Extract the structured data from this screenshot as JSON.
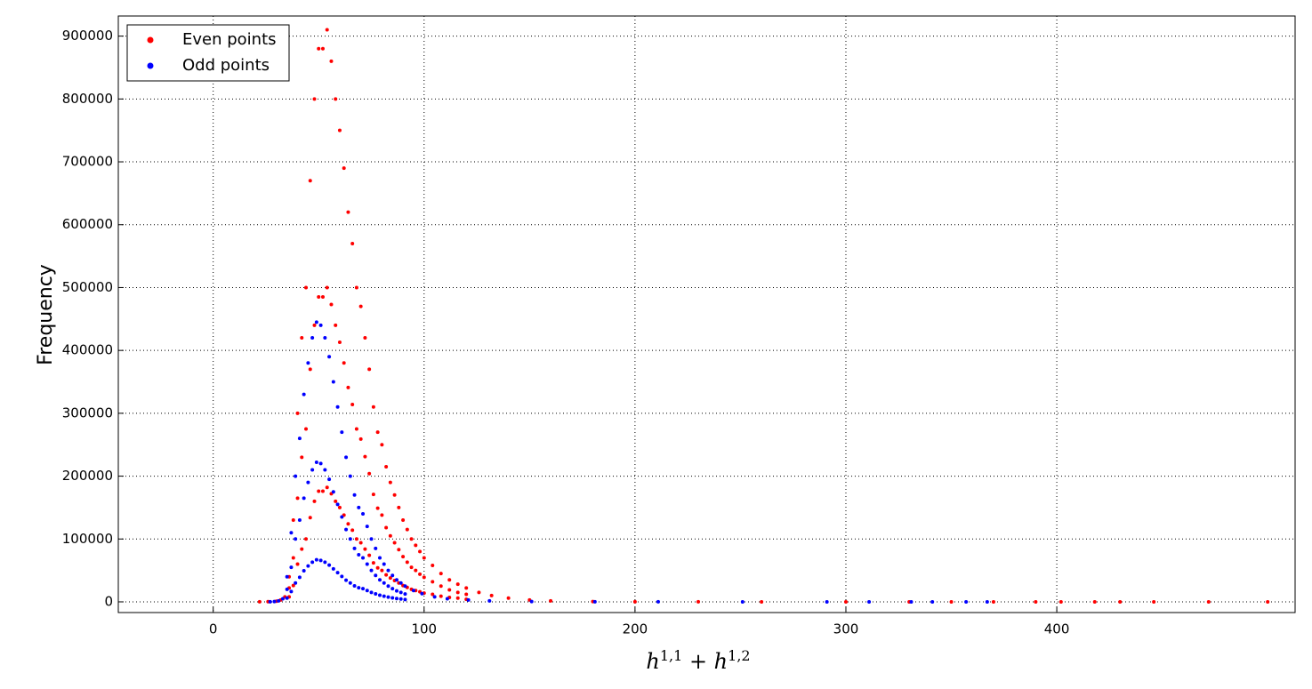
{
  "chart_data": {
    "type": "scatter",
    "ylabel": "Frequency",
    "xlabel": [
      {
        "text": "h",
        "sup": "1,1"
      },
      {
        "text": " + h",
        "sup": "1,2"
      }
    ],
    "xlim": [
      -45,
      513
    ],
    "ylim": [
      -17000,
      932000
    ],
    "xticks": [
      0,
      100,
      200,
      300,
      400
    ],
    "yticks": [
      0,
      100000,
      200000,
      300000,
      400000,
      500000,
      600000,
      700000,
      800000,
      900000
    ],
    "grid": true,
    "legend": "upper left",
    "series": [
      {
        "name": "Even points",
        "color": "#ff0000",
        "x": [
          22,
          26,
          30,
          32,
          34,
          36,
          36,
          36,
          38,
          38,
          38,
          40,
          40,
          40,
          42,
          42,
          42,
          44,
          44,
          44,
          46,
          46,
          46,
          48,
          48,
          48,
          50,
          50,
          50,
          52,
          52,
          52,
          54,
          54,
          54,
          56,
          56,
          56,
          58,
          58,
          58,
          60,
          60,
          60,
          62,
          62,
          62,
          64,
          64,
          64,
          66,
          66,
          66,
          68,
          68,
          68,
          70,
          70,
          70,
          72,
          72,
          72,
          74,
          74,
          74,
          76,
          76,
          76,
          78,
          78,
          78,
          80,
          80,
          80,
          82,
          82,
          82,
          84,
          84,
          84,
          86,
          86,
          86,
          88,
          88,
          88,
          90,
          90,
          90,
          92,
          92,
          92,
          94,
          94,
          94,
          96,
          96,
          96,
          98,
          98,
          98,
          100,
          100,
          100,
          104,
          104,
          104,
          108,
          108,
          108,
          112,
          112,
          112,
          116,
          116,
          116,
          120,
          120,
          120,
          126,
          132,
          140,
          150,
          160,
          180,
          200,
          230,
          260,
          300,
          330,
          350,
          370,
          390,
          402,
          418,
          430,
          446,
          472,
          500
        ],
        "y": [
          100,
          300,
          1000,
          3000,
          8000,
          40000,
          22000,
          8000,
          130000,
          70000,
          26000,
          300000,
          165000,
          60000,
          420000,
          230000,
          84000,
          500000,
          275000,
          100000,
          670000,
          370000,
          134000,
          800000,
          440000,
          160000,
          880000,
          485000,
          176000,
          880000,
          485000,
          176000,
          910000,
          500000,
          182000,
          860000,
          473000,
          172000,
          800000,
          440000,
          160000,
          750000,
          413000,
          150000,
          690000,
          380000,
          138000,
          620000,
          341000,
          124000,
          570000,
          314000,
          114000,
          500000,
          275000,
          100000,
          470000,
          259000,
          94000,
          420000,
          231000,
          84000,
          370000,
          204000,
          74000,
          310000,
          171000,
          62000,
          270000,
          149000,
          54000,
          250000,
          138000,
          50000,
          215000,
          118000,
          43000,
          190000,
          105000,
          38000,
          170000,
          94000,
          34000,
          150000,
          83000,
          30000,
          130000,
          72000,
          26000,
          115000,
          63000,
          23000,
          100000,
          55000,
          20000,
          90000,
          50000,
          18000,
          80000,
          44000,
          16000,
          70000,
          39000,
          14000,
          58000,
          32000,
          12000,
          45000,
          25000,
          9000,
          35000,
          19000,
          7000,
          28000,
          15000,
          6000,
          22000,
          12000,
          4000,
          15000,
          10000,
          6000,
          3000,
          1500,
          500,
          200,
          100,
          50,
          20,
          10,
          5,
          3,
          2,
          1,
          1,
          1,
          1,
          1,
          1
        ]
      },
      {
        "name": "Odd points",
        "color": "#0000ff",
        "x": [
          27,
          29,
          31,
          33,
          35,
          35,
          35,
          37,
          37,
          37,
          39,
          39,
          39,
          41,
          41,
          41,
          43,
          43,
          43,
          45,
          45,
          45,
          47,
          47,
          47,
          49,
          49,
          49,
          51,
          51,
          51,
          53,
          53,
          53,
          55,
          55,
          55,
          57,
          57,
          57,
          59,
          59,
          59,
          61,
          61,
          61,
          63,
          63,
          63,
          65,
          65,
          65,
          67,
          67,
          67,
          69,
          69,
          69,
          71,
          71,
          71,
          73,
          73,
          73,
          75,
          75,
          75,
          77,
          77,
          77,
          79,
          79,
          79,
          81,
          81,
          81,
          83,
          83,
          83,
          85,
          85,
          85,
          87,
          87,
          87,
          89,
          89,
          89,
          91,
          91,
          91,
          95,
          99,
          105,
          111,
          121,
          131,
          151,
          181,
          211,
          251,
          291,
          311,
          331,
          341,
          357,
          367
        ],
        "y": [
          200,
          500,
          1500,
          5000,
          40000,
          20000,
          6000,
          110000,
          55000,
          16500,
          200000,
          100000,
          30000,
          260000,
          130000,
          39000,
          330000,
          165000,
          49500,
          380000,
          190000,
          57000,
          420000,
          210000,
          63000,
          445000,
          222000,
          67000,
          440000,
          220000,
          66000,
          420000,
          210000,
          63000,
          390000,
          195000,
          58500,
          350000,
          175000,
          52500,
          310000,
          155000,
          46500,
          270000,
          135000,
          40500,
          230000,
          115000,
          34500,
          200000,
          100000,
          30000,
          170000,
          85000,
          25500,
          150000,
          75000,
          22500,
          140000,
          70000,
          21000,
          120000,
          60000,
          18000,
          100000,
          50000,
          15000,
          85000,
          42000,
          12700,
          70000,
          35000,
          10500,
          60000,
          30000,
          9000,
          50000,
          25000,
          7500,
          42000,
          21000,
          6300,
          35000,
          17500,
          5200,
          30000,
          15000,
          4500,
          25000,
          12500,
          3700,
          18000,
          13000,
          8000,
          5000,
          3000,
          1500,
          500,
          200,
          80,
          30,
          10,
          5,
          2,
          1,
          1,
          1
        ]
      }
    ]
  }
}
